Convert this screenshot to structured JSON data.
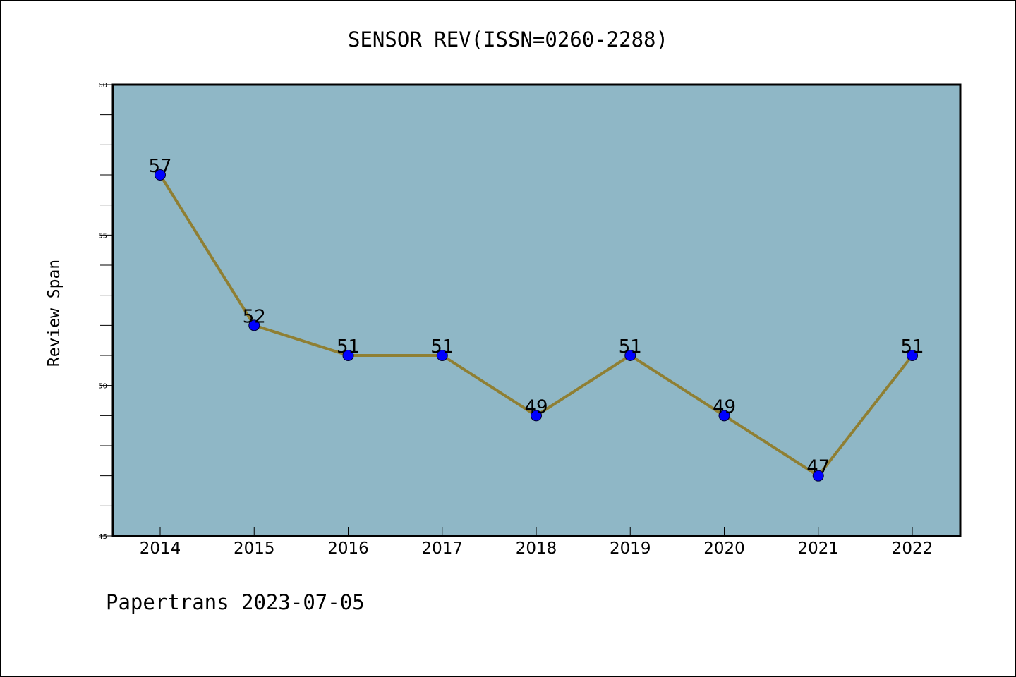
{
  "chart_data": {
    "type": "line",
    "title": "SENSOR REV(ISSN=0260-2288)",
    "xlabel": "",
    "ylabel": "Review Span",
    "categories": [
      "2014",
      "2015",
      "2016",
      "2017",
      "2018",
      "2019",
      "2020",
      "2021",
      "2022"
    ],
    "series": [
      {
        "values": [
          57,
          52,
          51,
          51,
          49,
          51,
          49,
          47,
          51
        ]
      }
    ],
    "data_labels": [
      "57",
      "52",
      "51",
      "51",
      "49",
      "51",
      "49",
      "47",
      "51"
    ],
    "ylim": [
      45,
      60
    ],
    "yticks": [
      "45",
      "50",
      "55",
      "60"
    ],
    "grid": false,
    "legend": "none",
    "colors": {
      "plot_background": "#8fb7c6",
      "line": "#8f7f33",
      "marker": "#0000ff",
      "axes": "#000000"
    }
  },
  "footer": "Papertrans 2023-07-05"
}
